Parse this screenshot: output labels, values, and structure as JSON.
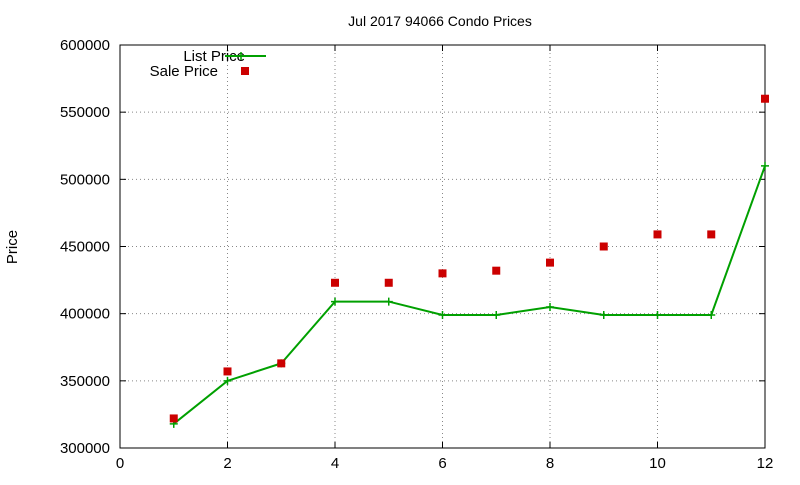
{
  "chart_data": {
    "type": "line",
    "title": "Jul 2017 94066 Condo Prices",
    "xlabel": "",
    "ylabel": "Price",
    "xlim": [
      0,
      12
    ],
    "ylim": [
      300000,
      600000
    ],
    "xticks": [
      0,
      2,
      4,
      6,
      8,
      10,
      12
    ],
    "yticks": [
      300000,
      350000,
      400000,
      450000,
      500000,
      550000,
      600000
    ],
    "grid": true,
    "legend": "top-left",
    "x": [
      1,
      2,
      3,
      4,
      5,
      6,
      7,
      8,
      9,
      10,
      11,
      12
    ],
    "series": [
      {
        "name": "List Price",
        "style": "line+cross",
        "color": "#00a000",
        "values": [
          318000,
          350000,
          363000,
          409000,
          409000,
          399000,
          399000,
          405000,
          399000,
          399000,
          399000,
          510000
        ]
      },
      {
        "name": "Sale Price",
        "style": "square-points",
        "color": "#cc0000",
        "values": [
          322000,
          357000,
          363000,
          423000,
          423000,
          430000,
          432000,
          438000,
          450000,
          459000,
          459000,
          560000
        ]
      }
    ]
  }
}
